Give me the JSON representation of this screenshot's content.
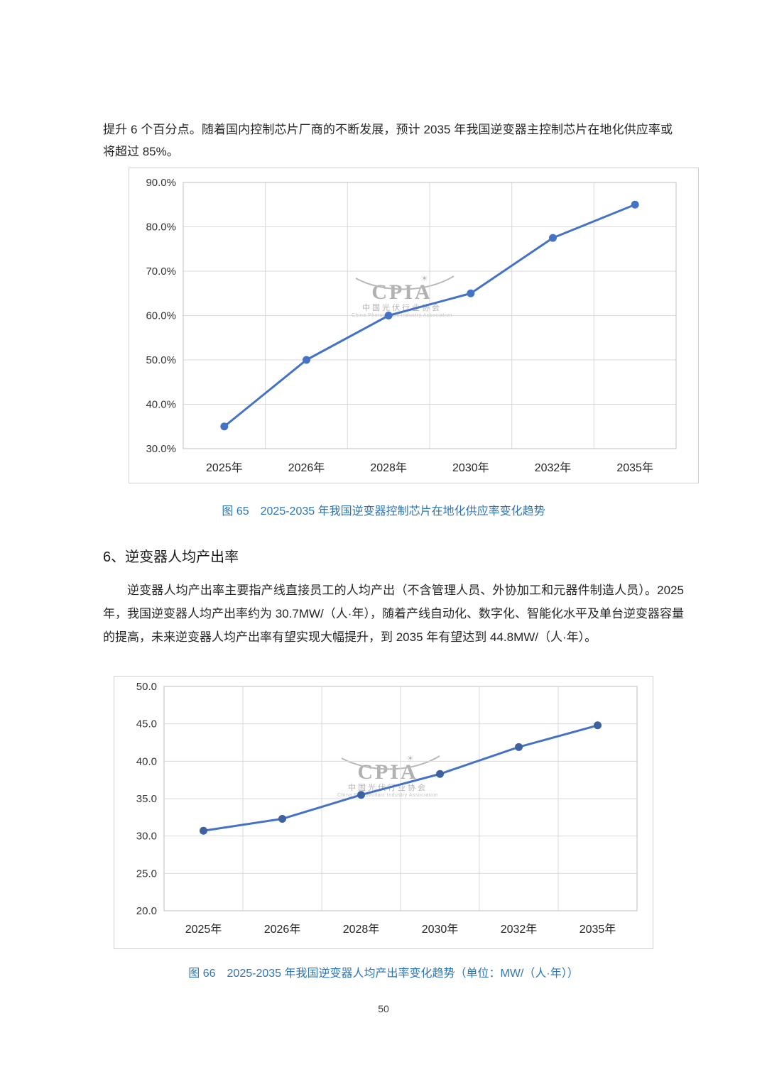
{
  "page": {
    "intro": "提升 6 个百分点。随着国内控制芯片厂商的不断发展，预计 2035 年我国逆变器主控制芯片在地化供应率或将超过 85%。",
    "section_heading": "6、逆变器人均产出率",
    "section_paragraph": "逆变器人均产出率主要指产线直接员工的人均产出（不含管理人员、外协加工和元器件制造人员）。2025 年，我国逆变器人均产出率约为 30.7MW/（人·年），随着产线自动化、数字化、智能化水平及单台逆变器容量的提高，未来逆变器人均产出率有望实现大幅提升，到 2035 年有望达到 44.8MW/（人·年）。",
    "figure65_caption": "图 65　2025-2035 年我国逆变器控制芯片在地化供应率变化趋势",
    "figure66_caption": "图 66　2025-2035 年我国逆变器人均产出率变化趋势（单位：MW/（人·年））",
    "page_number": "50"
  },
  "watermark": {
    "logo": "CPIA",
    "sun_icon": "☀",
    "subtitle_cn": "中国光伏行业协会",
    "subtitle_en": "China Photovoltaic Industry Association"
  },
  "chart_data": [
    {
      "type": "line",
      "title": "2025-2035 年我国逆变器控制芯片在地化供应率变化趋势",
      "categories": [
        "2025年",
        "2026年",
        "2028年",
        "2030年",
        "2032年",
        "2035年"
      ],
      "values": [
        35.0,
        50.0,
        60.0,
        65.0,
        77.5,
        85.0
      ],
      "xlabel": "",
      "ylabel": "",
      "ylim": [
        30,
        90
      ],
      "ytick_step": 10,
      "ytick_format": "percent",
      "yticks": [
        "30.0%",
        "40.0%",
        "50.0%",
        "60.0%",
        "70.0%",
        "80.0%",
        "90.0%"
      ],
      "grid": true,
      "legend": "none",
      "line_color": "#4472C4",
      "marker_color": "#4472C4"
    },
    {
      "type": "line",
      "title": "2025-2035 年我国逆变器人均产出率变化趋势（单位：MW/（人·年））",
      "categories": [
        "2025年",
        "2026年",
        "2028年",
        "2030年",
        "2032年",
        "2035年"
      ],
      "values": [
        30.7,
        32.3,
        35.5,
        38.3,
        41.9,
        44.8
      ],
      "xlabel": "",
      "ylabel": "",
      "ylim": [
        20,
        50
      ],
      "ytick_step": 5,
      "ytick_format": "decimal1",
      "yticks": [
        "20.0",
        "25.0",
        "30.0",
        "35.0",
        "40.0",
        "45.0",
        "50.0"
      ],
      "grid": true,
      "legend": "none",
      "line_color": "#4472C4",
      "marker_color": "#3E619F"
    }
  ]
}
